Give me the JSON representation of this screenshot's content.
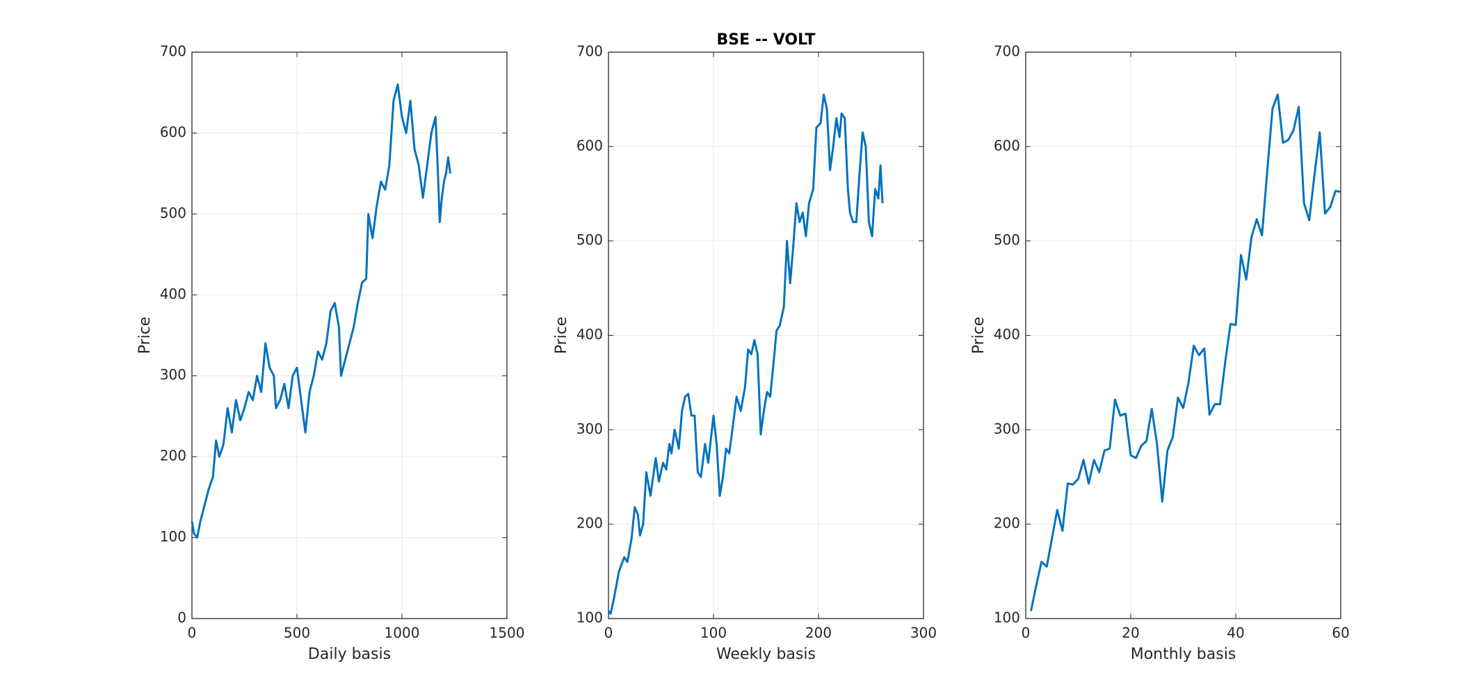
{
  "chart_data": [
    {
      "type": "line",
      "xlabel": "Daily basis",
      "ylabel": "Price",
      "xlim": [
        0,
        1500
      ],
      "xticks": [
        0,
        500,
        1000,
        1500
      ],
      "ylim": [
        0,
        700
      ],
      "yticks": [
        0,
        100,
        200,
        300,
        400,
        500,
        600,
        700
      ],
      "grid": true,
      "color": "#0072bd",
      "x": [
        0,
        10,
        25,
        40,
        60,
        80,
        100,
        115,
        130,
        150,
        170,
        190,
        210,
        230,
        250,
        270,
        290,
        310,
        330,
        350,
        370,
        390,
        400,
        420,
        440,
        460,
        480,
        500,
        520,
        540,
        560,
        580,
        600,
        620,
        640,
        660,
        680,
        700,
        710,
        730,
        750,
        770,
        790,
        810,
        830,
        840,
        860,
        880,
        900,
        920,
        940,
        960,
        980,
        1000,
        1020,
        1040,
        1060,
        1080,
        1100,
        1120,
        1140,
        1160,
        1170,
        1180,
        1190,
        1200,
        1210,
        1220,
        1230
      ],
      "values": [
        120,
        105,
        100,
        120,
        140,
        160,
        175,
        220,
        200,
        215,
        260,
        230,
        270,
        245,
        260,
        280,
        270,
        300,
        280,
        340,
        310,
        300,
        260,
        270,
        290,
        260,
        300,
        310,
        270,
        230,
        280,
        300,
        330,
        320,
        340,
        380,
        390,
        360,
        300,
        320,
        340,
        360,
        390,
        415,
        420,
        500,
        470,
        510,
        540,
        530,
        560,
        640,
        660,
        620,
        600,
        640,
        580,
        560,
        520,
        560,
        600,
        620,
        560,
        490,
        520,
        540,
        550,
        570,
        550
      ]
    },
    {
      "type": "line",
      "title": "BSE -- VOLT",
      "xlabel": "Weekly basis",
      "ylabel": "Price",
      "xlim": [
        0,
        300
      ],
      "xticks": [
        0,
        100,
        200,
        300
      ],
      "ylim": [
        100,
        700
      ],
      "yticks": [
        100,
        200,
        300,
        400,
        500,
        600,
        700
      ],
      "grid": true,
      "color": "#0072bd",
      "x": [
        0,
        2,
        5,
        10,
        15,
        18,
        22,
        25,
        28,
        30,
        33,
        36,
        40,
        45,
        48,
        52,
        55,
        58,
        60,
        63,
        67,
        70,
        73,
        76,
        79,
        82,
        85,
        88,
        92,
        95,
        100,
        103,
        106,
        109,
        112,
        115,
        118,
        122,
        126,
        130,
        133,
        136,
        139,
        142,
        145,
        148,
        151,
        154,
        158,
        160,
        163,
        167,
        170,
        173,
        176,
        179,
        182,
        185,
        188,
        191,
        195,
        198,
        202,
        205,
        208,
        211,
        214,
        217,
        220,
        222,
        225,
        228,
        230,
        233,
        236,
        239,
        242,
        245,
        248,
        251,
        254,
        257,
        259,
        261
      ],
      "values": [
        108,
        105,
        120,
        150,
        165,
        160,
        185,
        218,
        210,
        188,
        200,
        255,
        230,
        270,
        245,
        265,
        258,
        285,
        275,
        300,
        280,
        320,
        335,
        338,
        315,
        315,
        255,
        250,
        285,
        265,
        315,
        285,
        230,
        250,
        280,
        275,
        300,
        335,
        320,
        345,
        385,
        380,
        395,
        380,
        295,
        320,
        340,
        335,
        380,
        405,
        410,
        430,
        500,
        455,
        495,
        540,
        520,
        530,
        505,
        540,
        555,
        620,
        625,
        655,
        640,
        575,
        600,
        630,
        610,
        635,
        630,
        555,
        530,
        520,
        520,
        570,
        615,
        600,
        520,
        505,
        555,
        545,
        580,
        540
      ]
    },
    {
      "type": "line",
      "xlabel": "Monthly basis",
      "ylabel": "Price",
      "xlim": [
        0,
        60
      ],
      "xticks": [
        0,
        20,
        40,
        60
      ],
      "ylim": [
        100,
        700
      ],
      "yticks": [
        100,
        200,
        300,
        400,
        500,
        600,
        700
      ],
      "grid": true,
      "color": "#0072bd",
      "x": [
        1,
        2,
        3,
        4,
        5,
        6,
        7,
        8,
        9,
        10,
        11,
        12,
        13,
        14,
        15,
        16,
        17,
        18,
        19,
        20,
        21,
        22,
        23,
        24,
        25,
        26,
        27,
        28,
        29,
        30,
        31,
        32,
        33,
        34,
        35,
        36,
        37,
        38,
        39,
        40,
        41,
        42,
        43,
        44,
        45,
        46,
        47,
        48,
        49,
        50,
        51,
        52,
        53,
        54,
        55,
        56,
        57,
        58,
        59,
        60
      ],
      "values": [
        108,
        135,
        160,
        155,
        185,
        215,
        193,
        243,
        242,
        248,
        268,
        243,
        268,
        255,
        278,
        280,
        332,
        315,
        317,
        273,
        270,
        283,
        288,
        322,
        285,
        224,
        278,
        292,
        334,
        323,
        350,
        389,
        379,
        386,
        316,
        327,
        327,
        372,
        412,
        411,
        485,
        459,
        504,
        523,
        506,
        574,
        640,
        655,
        604,
        607,
        617,
        642,
        540,
        522,
        570,
        615,
        529,
        536,
        553,
        552
      ]
    }
  ]
}
